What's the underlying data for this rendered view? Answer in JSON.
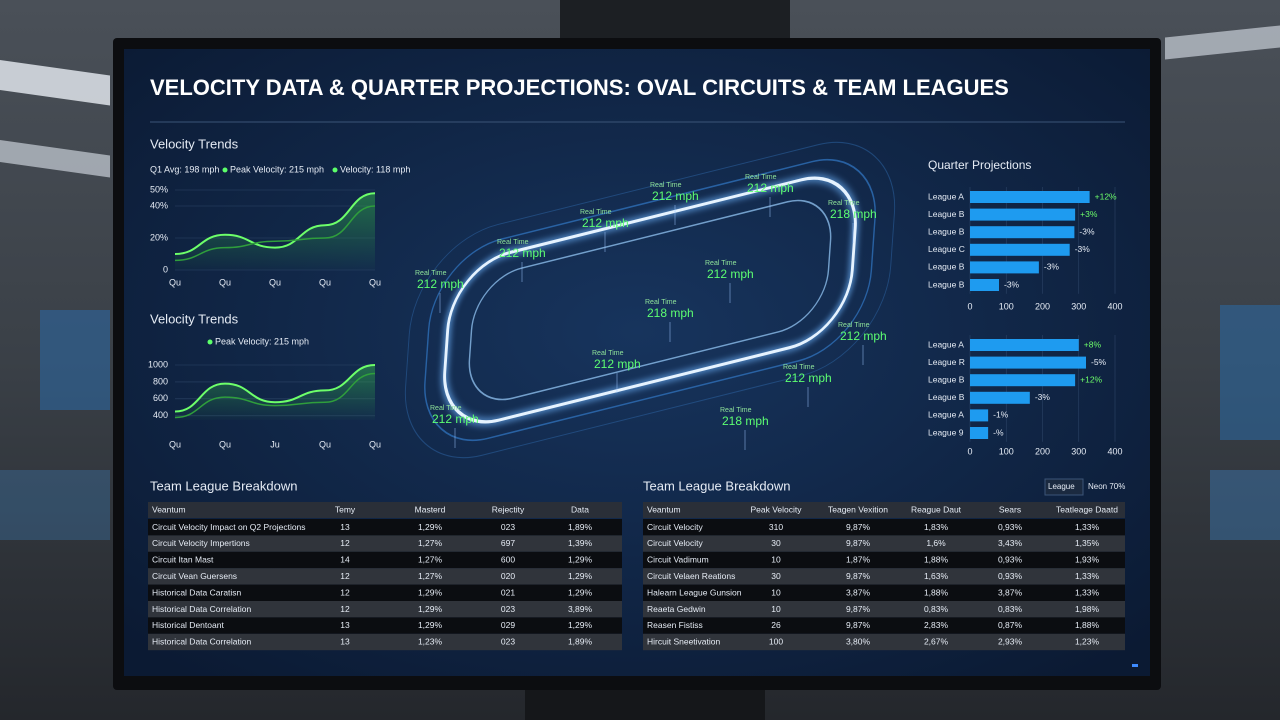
{
  "header": {
    "title": "VELOCITY DATA & QUARTER PROJECTIONS: OVAL CIRCUITS & TEAM LEAGUES"
  },
  "trends": [
    {
      "type": "line",
      "title": "Velocity Trends",
      "legend": [
        "Q1 Avg: 198 mph",
        "Peak Velocity: 215 mph",
        "Velocity: 118 mph"
      ],
      "categories": [
        "Qu",
        "Qu",
        "Qu",
        "Qu",
        "Qu"
      ],
      "series": [
        {
          "color": "#6dff6a",
          "values": [
            10,
            22,
            14,
            28,
            48
          ]
        },
        {
          "color": "#2f9e3c",
          "values": [
            6,
            14,
            18,
            20,
            40
          ]
        }
      ],
      "ylim": [
        0,
        50
      ],
      "yticks": [
        {
          "value": 50,
          "label": "50%"
        },
        {
          "value": 40,
          "label": "40%"
        },
        {
          "value": 20,
          "label": "20%"
        },
        0
      ]
    },
    {
      "type": "line",
      "title": "Velocity Trends",
      "legend": [
        "Peak Velocity: 215 mph"
      ],
      "categories": [
        "Qu",
        "Qu",
        "Ju",
        "Qu",
        "Qu"
      ],
      "series": [
        {
          "color": "#6dff6a",
          "values": [
            450,
            780,
            560,
            700,
            1000
          ]
        },
        {
          "color": "#2f9e3c",
          "values": [
            380,
            620,
            520,
            560,
            900
          ]
        }
      ],
      "ylim": [
        350,
        1000
      ],
      "yticks": [
        1000,
        800,
        600,
        400
      ]
    }
  ],
  "track": {
    "labels": [
      {
        "caption": "Real Time",
        "speed": "212 mph"
      },
      {
        "caption": "Real Time",
        "speed": "212 mph"
      },
      {
        "caption": "Real Time",
        "speed": "218 mph"
      },
      {
        "caption": "Real Time",
        "speed": "212 mph"
      },
      {
        "caption": "Real Time",
        "speed": "212 mph"
      },
      {
        "caption": "Real Time",
        "speed": "212 mph"
      },
      {
        "caption": "Real Time",
        "speed": "212 mph"
      },
      {
        "caption": "Real Time",
        "speed": "218 mph"
      },
      {
        "caption": "Real Time",
        "speed": "212 mph"
      },
      {
        "caption": "Real Time",
        "speed": "212 mph"
      },
      {
        "caption": "Real Time",
        "speed": "212 mph"
      },
      {
        "caption": "Real Time",
        "speed": "212 mph"
      },
      {
        "caption": "Real Time",
        "speed": "218 mph"
      }
    ]
  },
  "projections": {
    "title": "Quarter Projections",
    "charts": [
      {
        "type": "bar",
        "color": "#1e9bf0",
        "categories": [
          "League A",
          "League B",
          "League B",
          "League C",
          "League B",
          "League B"
        ],
        "values": [
          330,
          290,
          288,
          275,
          190,
          80
        ],
        "changes": [
          "+12%",
          "+3%",
          "-3%",
          "-3%",
          "-3%",
          "-3%"
        ],
        "xlim": [
          0,
          400
        ],
        "xticks": [
          0,
          100,
          200,
          300,
          400
        ]
      },
      {
        "type": "bar",
        "color": "#1e9bf0",
        "categories": [
          "League A",
          "League R",
          "League B",
          "League B",
          "League A",
          "League 9"
        ],
        "values": [
          300,
          320,
          290,
          165,
          50,
          50
        ],
        "changes": [
          "+8%",
          "-5%",
          "+12%",
          "-3%",
          "-1%",
          "-%"
        ],
        "xlim": [
          0,
          400
        ],
        "xticks": [
          0,
          100,
          200,
          300,
          400
        ]
      }
    ]
  },
  "tables": [
    {
      "title": "Team League Breakdown",
      "headers": [
        "Veantum",
        "Temy",
        "Masterd",
        "Rejectity",
        "Data"
      ],
      "rows": [
        [
          "Circuit Velocity Impact on Q2 Projections",
          "13",
          "1,29%",
          "023",
          "1,89%"
        ],
        [
          "Circuit Velocity Impertions",
          "12",
          "1,27%",
          "697",
          "1,39%"
        ],
        [
          "Circuit Itan Mast",
          "14",
          "1,27%",
          "600",
          "1,29%"
        ],
        [
          "Circuit Vean Guersens",
          "12",
          "1,27%",
          "020",
          "1,29%"
        ],
        [
          "Historical Data Caratisn",
          "12",
          "1,29%",
          "021",
          "1,29%"
        ],
        [
          "Historical Data Correlation",
          "12",
          "1,29%",
          "023",
          "3,89%"
        ],
        [
          "Historical Dentoant",
          "13",
          "1,29%",
          "029",
          "1,29%"
        ],
        [
          "Historical Data Correlation",
          "13",
          "1,23%",
          "023",
          "1,89%"
        ]
      ]
    },
    {
      "title": "Team League Breakdown",
      "controls": [
        "League",
        "Neon 70%"
      ],
      "headers": [
        "Veantum",
        "Peak Velocity",
        "Teagen Vexition",
        "Reague Daut",
        "Sears",
        "Teatleage Daatd"
      ],
      "rows": [
        [
          "Circuit Velocity",
          "310",
          "9,87%",
          "1,83%",
          "0,93%",
          "1,33%"
        ],
        [
          "Circuit Velocity",
          "30",
          "9,87%",
          "1,6%",
          "3,43%",
          "1,35%"
        ],
        [
          "Circuit Vadimum",
          "10",
          "1,87%",
          "1,88%",
          "0,93%",
          "1,93%"
        ],
        [
          "Circuit Velaen Reations",
          "30",
          "9,87%",
          "1,63%",
          "0,93%",
          "1,33%"
        ],
        [
          "Halearn League Gunsion",
          "10",
          "3,87%",
          "1,88%",
          "3,87%",
          "1,33%"
        ],
        [
          "Reaeta Gedwin",
          "10",
          "9,87%",
          "0,83%",
          "0,83%",
          "1,98%"
        ],
        [
          "Reasen Fistiss",
          "26",
          "9,87%",
          "2,83%",
          "0,87%",
          "1,88%"
        ],
        [
          "Hircuit Sneetivation",
          "100",
          "3,80%",
          "2,67%",
          "2,93%",
          "1,23%"
        ]
      ]
    }
  ]
}
